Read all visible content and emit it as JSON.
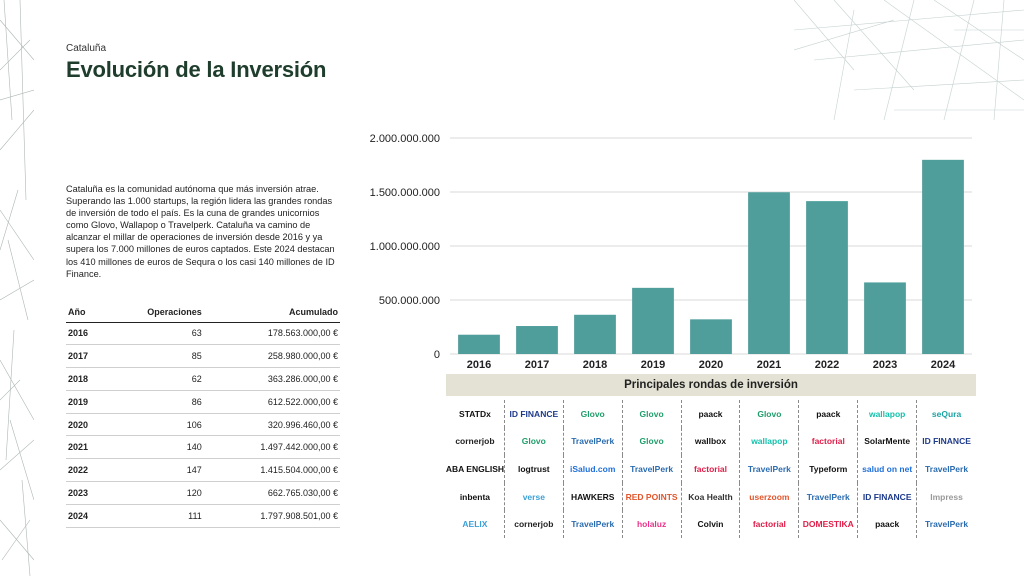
{
  "header": {
    "region": "Cataluña",
    "title": "Evolución de la Inversión"
  },
  "intro": "Cataluña es la comunidad autónoma que más inversión atrae. Superando las 1.000 startups, la región lidera las grandes rondas de inversión de todo el país. Es la cuna de grandes unicornios como Glovo, Wallapop o Travelperk. Cataluña va camino de alcanzar el millar de operaciones de inversión desde 2016 y ya supera los 7.000 millones de euros captados. Este 2024 destacan los 410 millones de euros de Sequra o los casi 140 millones de ID Finance.",
  "table": {
    "headers": [
      "Año",
      "Operaciones",
      "Acumulado"
    ],
    "rows": [
      [
        "2016",
        "63",
        "178.563.000,00 €"
      ],
      [
        "2017",
        "85",
        "258.980.000,00 €"
      ],
      [
        "2018",
        "62",
        "363.286.000,00 €"
      ],
      [
        "2019",
        "86",
        "612.522.000,00 €"
      ],
      [
        "2020",
        "106",
        "320.996.460,00 €"
      ],
      [
        "2021",
        "140",
        "1.497.442.000,00 €"
      ],
      [
        "2022",
        "147",
        "1.415.504.000,00 €"
      ],
      [
        "2023",
        "120",
        "662.765.030,00 €"
      ],
      [
        "2024",
        "111",
        "1.797.908.501,00 €"
      ]
    ]
  },
  "chart_data": {
    "type": "bar",
    "categories": [
      "2016",
      "2017",
      "2018",
      "2019",
      "2020",
      "2021",
      "2022",
      "2023",
      "2024"
    ],
    "values": [
      178563000,
      258980000,
      363286000,
      612522000,
      320996460,
      1497442000,
      1415504000,
      662765030,
      1797908501
    ],
    "ylim": [
      0,
      2000000000
    ],
    "yticks": [
      0,
      500000000,
      1000000000,
      1500000000,
      2000000000
    ],
    "ytick_labels": [
      "0",
      "500.000.000",
      "1.000.000.000",
      "1.500.000.000",
      "2.000.000.000"
    ],
    "title": "",
    "xlabel": "",
    "ylabel": "",
    "grid": "horizontal",
    "bar_color": "#4f9e9b"
  },
  "rondas": {
    "title": "Principales rondas de inversión",
    "logos": [
      {
        "text": "STATDx",
        "color": "#111111"
      },
      {
        "text": "ID FINANCE",
        "color": "#1e3a8a"
      },
      {
        "text": "Glovo",
        "color": "#1f9e6a"
      },
      {
        "text": "Glovo",
        "color": "#1f9e6a"
      },
      {
        "text": "paack",
        "color": "#111111"
      },
      {
        "text": "Glovo",
        "color": "#1f9e6a"
      },
      {
        "text": "paack",
        "color": "#111111"
      },
      {
        "text": "wallapop",
        "color": "#13c1ac"
      },
      {
        "text": "seQura",
        "color": "#1aa3a3"
      },
      {
        "text": "cornerjob",
        "color": "#222222"
      },
      {
        "text": "Glovo",
        "color": "#1f9e6a"
      },
      {
        "text": "TravelPerk",
        "color": "#2b6cb0"
      },
      {
        "text": "Glovo",
        "color": "#1f9e6a"
      },
      {
        "text": "wallbox",
        "color": "#111111"
      },
      {
        "text": "wallapop",
        "color": "#13c1ac"
      },
      {
        "text": "factorial",
        "color": "#e11d48"
      },
      {
        "text": "SolarMente",
        "color": "#111111"
      },
      {
        "text": "ID FINANCE",
        "color": "#1e3a8a"
      },
      {
        "text": "ABA ENGLISH",
        "color": "#111111"
      },
      {
        "text": "logtrust",
        "color": "#111111"
      },
      {
        "text": "iSalud.com",
        "color": "#1e6fd9"
      },
      {
        "text": "TravelPerk",
        "color": "#2b6cb0"
      },
      {
        "text": "factorial",
        "color": "#e11d48"
      },
      {
        "text": "TravelPerk",
        "color": "#2b6cb0"
      },
      {
        "text": "Typeform",
        "color": "#111111"
      },
      {
        "text": "salud on net",
        "color": "#1e6fd9"
      },
      {
        "text": "TravelPerk",
        "color": "#2b6cb0"
      },
      {
        "text": "inbenta",
        "color": "#111111"
      },
      {
        "text": "verse",
        "color": "#3aa0d8"
      },
      {
        "text": "HAWKERS",
        "color": "#111111"
      },
      {
        "text": "RED POINTS",
        "color": "#e2552b"
      },
      {
        "text": "Koa Health",
        "color": "#333333"
      },
      {
        "text": "userzoom",
        "color": "#e2552b"
      },
      {
        "text": "TravelPerk",
        "color": "#2b6cb0"
      },
      {
        "text": "ID FINANCE",
        "color": "#1e3a8a"
      },
      {
        "text": "Impress",
        "color": "#999999"
      },
      {
        "text": "AELIX",
        "color": "#3aa0d8"
      },
      {
        "text": "cornerjob",
        "color": "#222222"
      },
      {
        "text": "TravelPerk",
        "color": "#2b6cb0"
      },
      {
        "text": "holaluz",
        "color": "#e9348a"
      },
      {
        "text": "Colvin",
        "color": "#111111"
      },
      {
        "text": "factorial",
        "color": "#e11d48"
      },
      {
        "text": "DOMESTIKA",
        "color": "#e11d48"
      },
      {
        "text": "paack",
        "color": "#111111"
      },
      {
        "text": "TravelPerk",
        "color": "#2b6cb0"
      }
    ]
  }
}
